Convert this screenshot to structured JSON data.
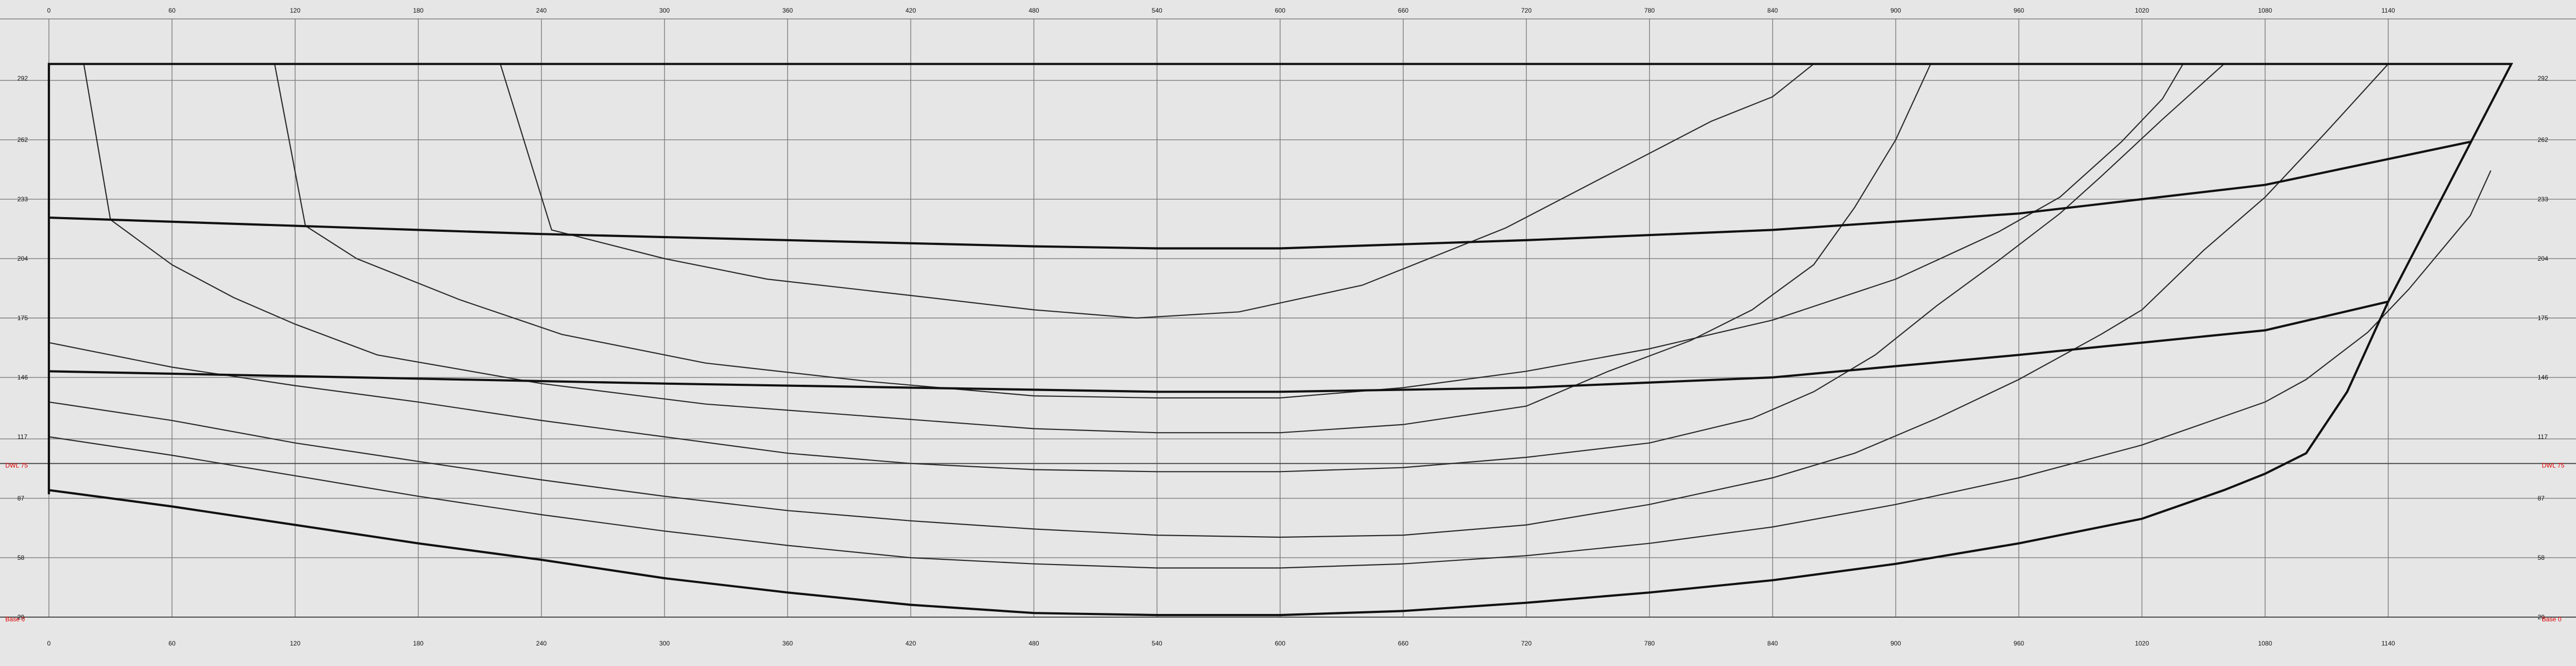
{
  "chart_data": {
    "type": "line",
    "x_ticks": [
      "0",
      "60",
      "120",
      "180",
      "240",
      "300",
      "360",
      "420",
      "480",
      "540",
      "600",
      "660",
      "720",
      "780",
      "840",
      "900",
      "960",
      "1020",
      "1080",
      "1140"
    ],
    "y_ticks": [
      "292",
      "262",
      "233",
      "204",
      "175",
      "146",
      "117",
      "87",
      "58",
      "29"
    ],
    "reference_lines": [
      {
        "label": "DWL 75",
        "y": 75,
        "color": "#e00000"
      },
      {
        "label": "Base 0",
        "y": 0,
        "color": "#e00000"
      }
    ],
    "xlim": [
      0,
      1200
    ],
    "ylim": [
      0,
      292
    ],
    "grid": true,
    "outline": [
      [
        0,
        60
      ],
      [
        0,
        270
      ],
      [
        1200,
        270
      ],
      [
        1140,
        154
      ],
      [
        1120,
        110
      ],
      [
        1100,
        80
      ],
      [
        1080,
        70
      ],
      [
        1060,
        62
      ],
      [
        1020,
        48
      ],
      [
        960,
        36
      ],
      [
        900,
        26
      ],
      [
        840,
        18
      ],
      [
        780,
        12
      ],
      [
        720,
        7
      ],
      [
        660,
        3
      ],
      [
        600,
        1
      ],
      [
        540,
        1
      ],
      [
        480,
        2
      ],
      [
        420,
        6
      ],
      [
        360,
        12
      ],
      [
        300,
        19
      ],
      [
        240,
        28
      ],
      [
        180,
        36
      ],
      [
        120,
        45
      ],
      [
        60,
        54
      ],
      [
        0,
        62
      ]
    ],
    "thick_curves": [
      [
        [
          0,
          195
        ],
        [
          240,
          187
        ],
        [
          480,
          181
        ],
        [
          540,
          180
        ],
        [
          600,
          180
        ],
        [
          660,
          182
        ],
        [
          720,
          184
        ],
        [
          840,
          189
        ],
        [
          960,
          197
        ],
        [
          1080,
          211
        ],
        [
          1180,
          232
        ]
      ],
      [
        [
          0,
          120
        ],
        [
          300,
          114
        ],
        [
          540,
          110
        ],
        [
          600,
          110
        ],
        [
          720,
          112
        ],
        [
          840,
          117
        ],
        [
          960,
          128
        ],
        [
          1080,
          140
        ],
        [
          1140,
          154
        ]
      ]
    ],
    "thin_curves": [
      [
        [
          17,
          270
        ],
        [
          30,
          194
        ],
        [
          60,
          172
        ],
        [
          90,
          156
        ],
        [
          120,
          143
        ],
        [
          160,
          128
        ],
        [
          240,
          114
        ],
        [
          320,
          104
        ],
        [
          400,
          98
        ],
        [
          480,
          92
        ],
        [
          540,
          90
        ],
        [
          600,
          90
        ],
        [
          660,
          94
        ],
        [
          720,
          103
        ],
        [
          760,
          120
        ],
        [
          800,
          135
        ],
        [
          830,
          150
        ],
        [
          860,
          172
        ],
        [
          880,
          200
        ],
        [
          900,
          233
        ],
        [
          917,
          270
        ]
      ],
      [
        [
          110,
          270
        ],
        [
          125,
          191
        ],
        [
          150,
          175
        ],
        [
          200,
          155
        ],
        [
          250,
          138
        ],
        [
          320,
          124
        ],
        [
          400,
          115
        ],
        [
          480,
          108
        ],
        [
          540,
          107
        ],
        [
          600,
          107
        ],
        [
          660,
          112
        ],
        [
          720,
          120
        ],
        [
          780,
          131
        ],
        [
          840,
          145
        ],
        [
          900,
          165
        ],
        [
          950,
          188
        ],
        [
          980,
          205
        ],
        [
          1010,
          232
        ],
        [
          1030,
          253
        ],
        [
          1040,
          270
        ]
      ],
      [
        [
          220,
          270
        ],
        [
          245,
          189
        ],
        [
          300,
          175
        ],
        [
          350,
          165
        ],
        [
          420,
          157
        ],
        [
          480,
          150
        ],
        [
          530,
          146
        ],
        [
          580,
          149
        ],
        [
          640,
          162
        ],
        [
          660,
          170
        ],
        [
          710,
          190
        ],
        [
          760,
          216
        ],
        [
          810,
          242
        ],
        [
          840,
          254
        ],
        [
          860,
          270
        ]
      ],
      [
        [
          0,
          134
        ],
        [
          30,
          128
        ],
        [
          60,
          122
        ],
        [
          120,
          113
        ],
        [
          180,
          105
        ],
        [
          240,
          96
        ],
        [
          300,
          88
        ],
        [
          360,
          80
        ],
        [
          420,
          75
        ],
        [
          480,
          72
        ],
        [
          540,
          71
        ],
        [
          600,
          71
        ],
        [
          660,
          73
        ],
        [
          720,
          78
        ],
        [
          780,
          85
        ],
        [
          830,
          97
        ],
        [
          860,
          110
        ],
        [
          890,
          128
        ],
        [
          920,
          152
        ],
        [
          950,
          174
        ],
        [
          980,
          197
        ],
        [
          1000,
          215
        ],
        [
          1030,
          243
        ],
        [
          1060,
          270
        ]
      ],
      [
        [
          0,
          105
        ],
        [
          60,
          96
        ],
        [
          120,
          85
        ],
        [
          180,
          76
        ],
        [
          240,
          67
        ],
        [
          300,
          59
        ],
        [
          360,
          52
        ],
        [
          420,
          47
        ],
        [
          480,
          43
        ],
        [
          540,
          40
        ],
        [
          600,
          39
        ],
        [
          660,
          40
        ],
        [
          720,
          45
        ],
        [
          780,
          55
        ],
        [
          840,
          68
        ],
        [
          880,
          80
        ],
        [
          920,
          97
        ],
        [
          960,
          116
        ],
        [
          1000,
          138
        ],
        [
          1020,
          150
        ],
        [
          1050,
          179
        ],
        [
          1080,
          205
        ],
        [
          1110,
          237
        ],
        [
          1140,
          270
        ]
      ],
      [
        [
          0,
          88
        ],
        [
          60,
          79
        ],
        [
          120,
          69
        ],
        [
          180,
          59
        ],
        [
          240,
          50
        ],
        [
          300,
          42
        ],
        [
          360,
          35
        ],
        [
          420,
          29
        ],
        [
          480,
          26
        ],
        [
          540,
          24
        ],
        [
          600,
          24
        ],
        [
          660,
          26
        ],
        [
          720,
          30
        ],
        [
          780,
          36
        ],
        [
          840,
          44
        ],
        [
          900,
          55
        ],
        [
          960,
          68
        ],
        [
          1020,
          84
        ],
        [
          1080,
          105
        ],
        [
          1100,
          116
        ],
        [
          1130,
          139
        ],
        [
          1150,
          160
        ],
        [
          1180,
          196
        ],
        [
          1190,
          218
        ]
      ]
    ]
  }
}
